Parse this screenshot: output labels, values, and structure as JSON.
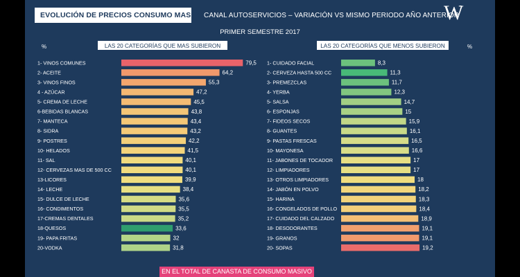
{
  "header": {
    "title": "EVOLUCIÓN DE PRECIOS CONSUMO MASIVO",
    "subtitle": "CANAL AUTOSERVICIOS – VARIACIÓN VS MISMO PERIODO AÑO ANTERIOR",
    "period": "PRIMER SEMESTRE 2017",
    "logo": "W",
    "logo_mark": "?"
  },
  "footer": {
    "label": "EN EL TOTAL DE CANASTA DE CONSUMO MASIVO"
  },
  "colors": {
    "background": "#1e3a5c",
    "footer": "#e5427a",
    "scale_high": "#e8636a",
    "scale_mid": "#f2d87a",
    "scale_low": "#4dbb78"
  },
  "chart_data": [
    {
      "type": "bar",
      "orientation": "horizontal",
      "title": "LAS 20 CATEGORÍAS QUE MAS SUBIERON",
      "unit_label": "%",
      "categories": [
        "1- VINOS COMUNES",
        "2- ACEITE",
        "3- VINOS FINOS",
        "4 - AZÚCAR",
        "5- CREMA DE LECHE",
        "6-BEBIDAS BLANCAS",
        "7- MANTECA",
        "8- SIDRA",
        "9- POSTRES",
        "10- HELADOS",
        "11- SAL",
        "12- CERVEZAS MAS DE 500 CC",
        "13-LICORES",
        "14- LECHE",
        "15- DULCE DE LECHE",
        "16- CONDIMENTOS",
        "17-CREMAS DENTALES",
        "18-QUESOS",
        "19- PAPA FRITAS",
        "20-VODKA"
      ],
      "values": [
        79.5,
        64.2,
        55.3,
        47.2,
        45.5,
        43.8,
        43.4,
        43.2,
        42.2,
        41.5,
        40.1,
        40.1,
        39.9,
        38.4,
        35.6,
        35.5,
        35.2,
        33.6,
        32,
        31.8
      ],
      "value_labels": [
        "79,5",
        "64,2",
        "55,3",
        "47,2",
        "45,5",
        "43,8",
        "43,4",
        "43,2",
        "42,2",
        "41,5",
        "40,1",
        "40,1",
        "39,9",
        "38,4",
        "35,6",
        "35,5",
        "35,2",
        "33,6",
        "32",
        "31,8"
      ],
      "colors": [
        "#e8636a",
        "#f0996c",
        "#f3a66e",
        "#f4b873",
        "#f4bc74",
        "#f4c677",
        "#f4c877",
        "#f4ca78",
        "#f3d07a",
        "#f3d47b",
        "#f1db7e",
        "#f1db7e",
        "#f0dd7f",
        "#e7df82",
        "#d6dc84",
        "#d0da85",
        "#cad986",
        "#2f9e6e",
        "#b4d587",
        "#aed388"
      ]
    },
    {
      "type": "bar",
      "orientation": "horizontal",
      "title": "LAS 20 CATEGORÍAS QUE MENOS SUBIERON",
      "unit_label": "%",
      "categories": [
        "1- CUIDADO FACIAL",
        "2- CERVEZA HASTA 500 CC",
        "3- PREMEZCLAS",
        "4- YERBA",
        "5- SALSA",
        "6- ESPONJAS",
        "7- FIDEOS SECOS",
        "8- GUANTES",
        "9- PASTAS FRESCAS",
        "10- MAYONESA",
        "11- JABONES DE TOCADOR",
        "12- LIMPIADORES",
        "13- OTROS LIMPIADORES",
        "14- JABÓN EN POLVO",
        "15- HARINA",
        "16- CONGELADOS DE POLLO",
        "17- CUIDADO DEL CALZADO",
        "18- DESODORANTES",
        "19- GRANOS",
        "20- SOPAS"
      ],
      "values": [
        8.3,
        11.3,
        11.7,
        12.3,
        14.7,
        15,
        15.9,
        16.1,
        16.5,
        16.6,
        17,
        17,
        18,
        18.2,
        18.3,
        18.4,
        18.9,
        19.1,
        19.1,
        19.2
      ],
      "value_labels": [
        "8,3",
        "11,3",
        "11,7",
        "12,3",
        "14,7",
        "15",
        "15,9",
        "16,1",
        "16,5",
        "16,6",
        "17",
        "17",
        "18",
        "18,2",
        "18,3",
        "18,4",
        "18,9",
        "19,1",
        "19,1",
        "19,2"
      ],
      "colors": [
        "#6cc17d",
        "#48b978",
        "#6cc17d",
        "#82c680",
        "#a2cf84",
        "#a9d185",
        "#c1d787",
        "#c8d988",
        "#d6dc88",
        "#d9dd88",
        "#e7df83",
        "#e7df83",
        "#f0dc7e",
        "#f2d67c",
        "#f2d37b",
        "#f3cf7a",
        "#f4bf75",
        "#f2a06e",
        "#f19a6d",
        "#ea6c6b"
      ]
    }
  ]
}
